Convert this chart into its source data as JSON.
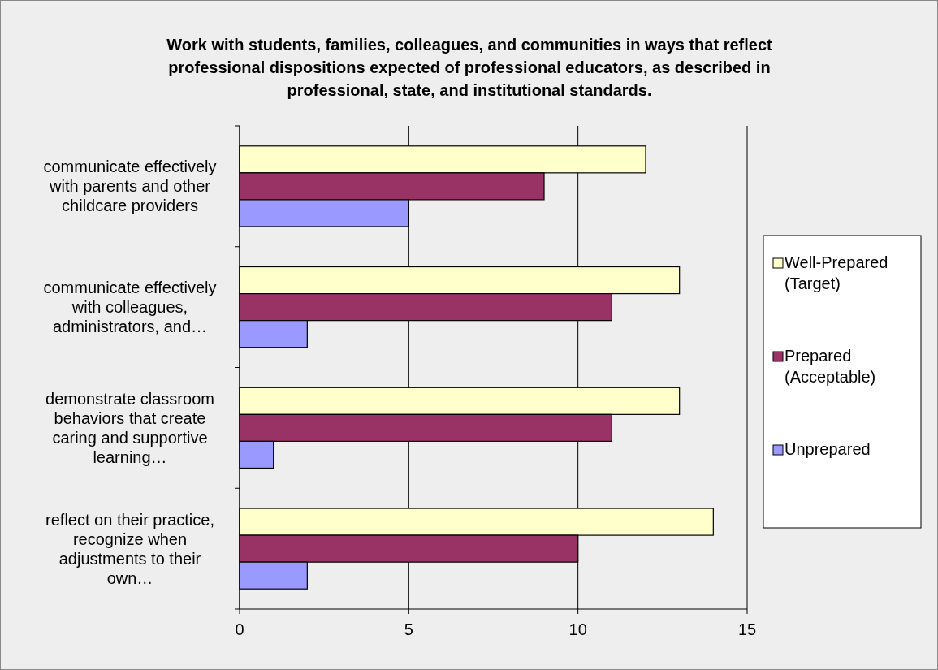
{
  "chart_data": {
    "type": "bar",
    "orientation": "horizontal",
    "title": "Work with students, families, colleagues, and communities in ways that reflect professional dispositions expected of professional educators, as described in professional, state, and institutional standards.",
    "categories": [
      "communicate effectively with parents and other childcare providers",
      "communicate effectively with colleagues, administrators, and…",
      "demonstrate classroom behaviors that create caring and supportive learning…",
      "reflect on their practice, recognize when adjustments to their own…"
    ],
    "series": [
      {
        "name": "Well-Prepared (Target)",
        "color": "#ffffcc",
        "values": [
          12,
          13,
          13,
          14
        ]
      },
      {
        "name": "Prepared (Acceptable)",
        "color": "#993366",
        "values": [
          9,
          11,
          11,
          10
        ]
      },
      {
        "name": "Unprepared",
        "color": "#9999ff",
        "values": [
          5,
          2,
          1,
          2
        ]
      }
    ],
    "xlim": [
      0,
      15
    ],
    "xticks": [
      0,
      5,
      10,
      15
    ],
    "grid": "x",
    "legend": "right"
  }
}
